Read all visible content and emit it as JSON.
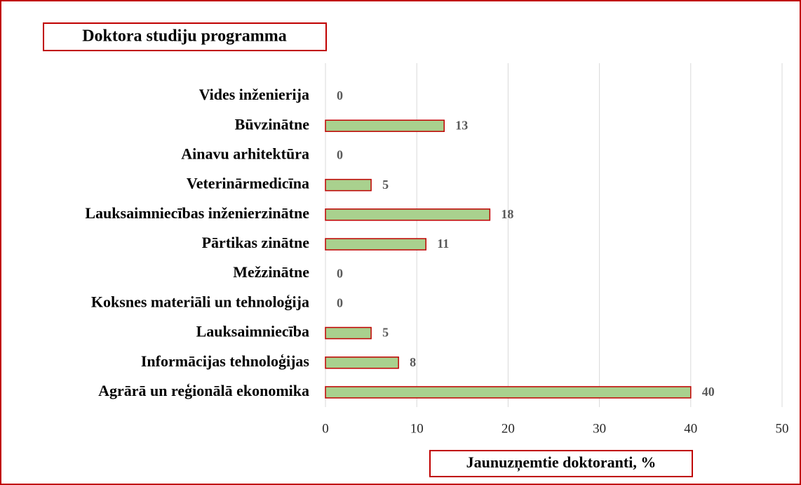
{
  "chart_data": {
    "type": "bar",
    "orientation": "horizontal",
    "title": "Doktora studiju programma",
    "x_label": "Jaunuzņemtie doktoranti, %",
    "categories": [
      "Vides inženierija",
      "Būvzinātne",
      "Ainavu arhitektūra",
      "Veterinārmedicīna",
      "Lauksaimniecības inženierzinātne",
      "Pārtikas zinātne",
      "Mežzinātne",
      "Koksnes materiāli un tehnoloģija",
      "Lauksaimniecība",
      "Informācijas tehnoloģijas",
      "Agrārā un reģionālā ekonomika"
    ],
    "values": [
      0,
      13,
      0,
      5,
      18,
      11,
      0,
      0,
      5,
      8,
      40
    ],
    "color": "#a9d18e",
    "edge_color": "#c00000",
    "xlim": [
      0,
      50
    ],
    "xticks": [
      0,
      10,
      20,
      30,
      40,
      50
    ],
    "grid": true
  }
}
